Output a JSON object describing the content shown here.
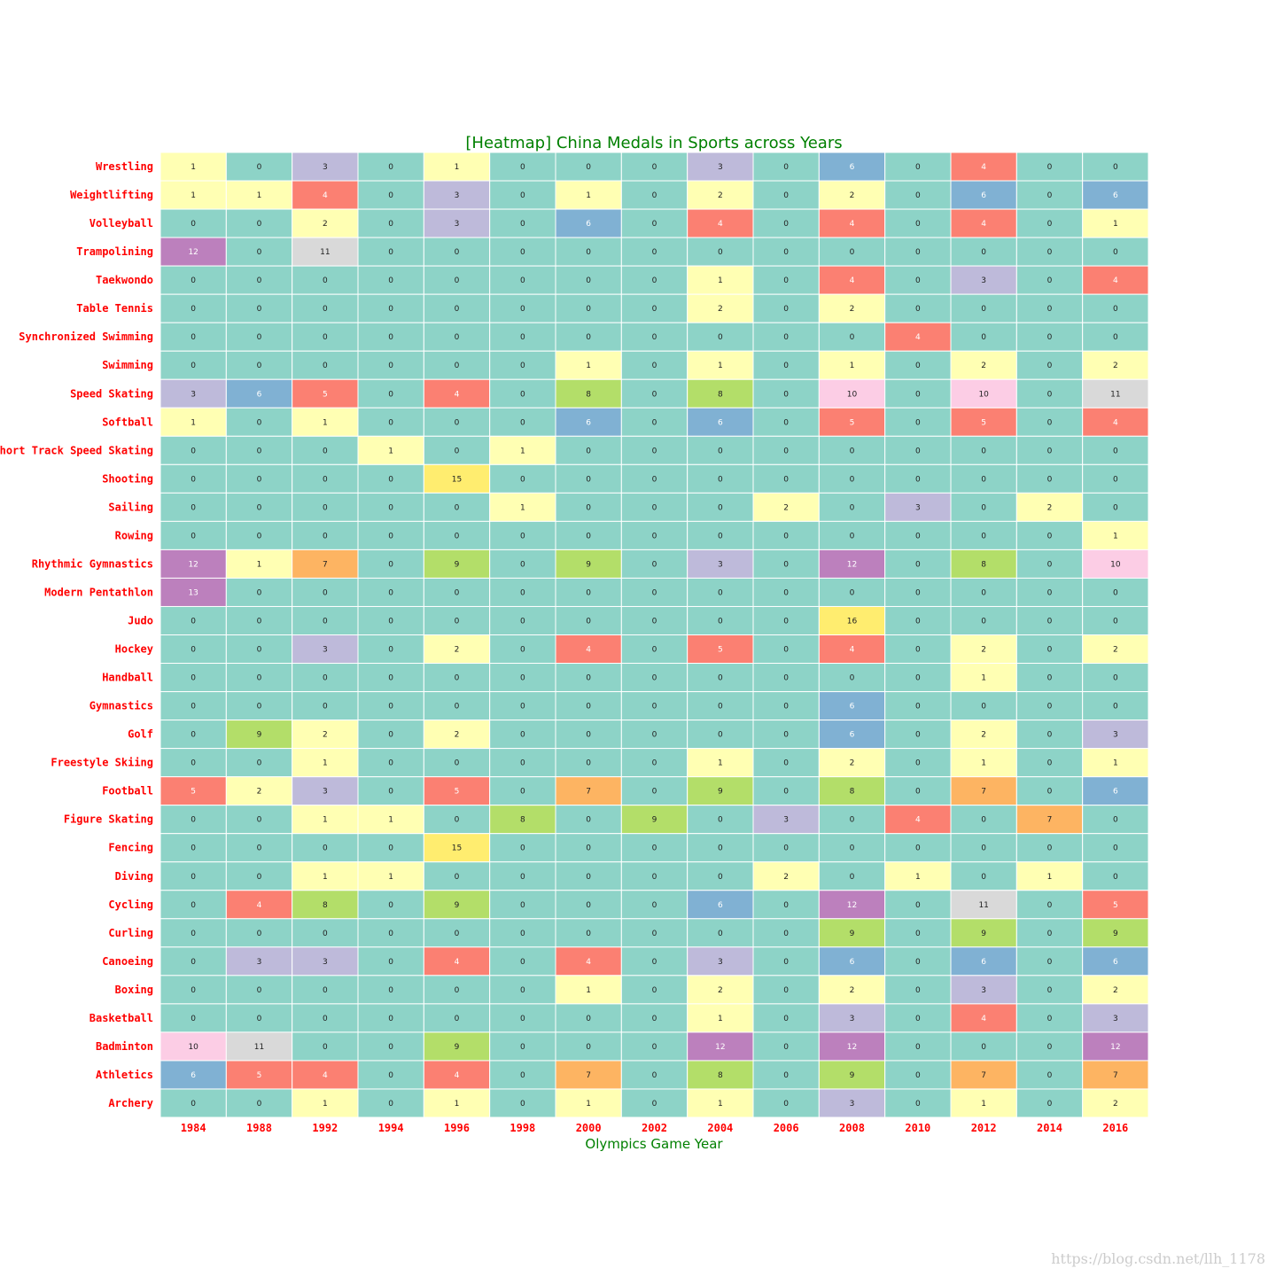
{
  "colors": {
    "title": "#008000",
    "tick_labels": "#ff0000",
    "cell_border": "#ffffff",
    "dark_text": "#222222",
    "light_text": "#ffffff",
    "watermark": "#cccccc",
    "palette": [
      "#8dd3c7",
      "#ffffb3",
      "#ffffb3",
      "#bebada",
      "#fb8072",
      "#fb8072",
      "#80b1d3",
      "#fdb462",
      "#b3de69",
      "#b3de69",
      "#fccde5",
      "#d9d9d9",
      "#bc80bd",
      "#bc80bd",
      "#ccebc5",
      "#ffed6f",
      "#ffed6f"
    ],
    "light_text_values": [
      4,
      5,
      6,
      12,
      13
    ]
  },
  "watermark": "https://blog.csdn.net/llh_1178",
  "chart_data": {
    "type": "heatmap",
    "title": "[Heatmap] China Medals in Sports across Years",
    "xlabel": "Olympics Game Year",
    "ylabel": "",
    "colormap": "Set3 (qualitative)",
    "columns": [
      "1984",
      "1988",
      "1992",
      "1994",
      "1996",
      "1998",
      "2000",
      "2002",
      "2004",
      "2006",
      "2008",
      "2010",
      "2012",
      "2014",
      "2016"
    ],
    "rows": [
      "Wrestling",
      "Weightlifting",
      "Volleyball",
      "Trampolining",
      "Taekwondo",
      "Table Tennis",
      "Synchronized Swimming",
      "Swimming",
      "Speed Skating",
      "Softball",
      "Short Track Speed Skating",
      "Shooting",
      "Sailing",
      "Rowing",
      "Rhythmic Gymnastics",
      "Modern Pentathlon",
      "Judo",
      "Hockey",
      "Handball",
      "Gymnastics",
      "Golf",
      "Freestyle Skiing",
      "Football",
      "Figure Skating",
      "Fencing",
      "Diving",
      "Cycling",
      "Curling",
      "Canoeing",
      "Boxing",
      "Basketball",
      "Badminton",
      "Athletics",
      "Archery"
    ],
    "values": [
      [
        1,
        0,
        3,
        0,
        1,
        0,
        0,
        0,
        3,
        0,
        6,
        0,
        4,
        0,
        0
      ],
      [
        1,
        1,
        4,
        0,
        3,
        0,
        1,
        0,
        2,
        0,
        2,
        0,
        6,
        0,
        6
      ],
      [
        0,
        0,
        2,
        0,
        3,
        0,
        6,
        0,
        4,
        0,
        4,
        0,
        4,
        0,
        1
      ],
      [
        12,
        0,
        11,
        0,
        0,
        0,
        0,
        0,
        0,
        0,
        0,
        0,
        0,
        0,
        0
      ],
      [
        0,
        0,
        0,
        0,
        0,
        0,
        0,
        0,
        1,
        0,
        4,
        0,
        3,
        0,
        4
      ],
      [
        0,
        0,
        0,
        0,
        0,
        0,
        0,
        0,
        2,
        0,
        2,
        0,
        0,
        0,
        0
      ],
      [
        0,
        0,
        0,
        0,
        0,
        0,
        0,
        0,
        0,
        0,
        0,
        4,
        0,
        0,
        0
      ],
      [
        0,
        0,
        0,
        0,
        0,
        0,
        1,
        0,
        1,
        0,
        1,
        0,
        2,
        0,
        2
      ],
      [
        3,
        6,
        5,
        0,
        4,
        0,
        8,
        0,
        8,
        0,
        10,
        0,
        10,
        0,
        11
      ],
      [
        1,
        0,
        1,
        0,
        0,
        0,
        6,
        0,
        6,
        0,
        5,
        0,
        5,
        0,
        4
      ],
      [
        0,
        0,
        0,
        1,
        0,
        1,
        0,
        0,
        0,
        0,
        0,
        0,
        0,
        0,
        0
      ],
      [
        0,
        0,
        0,
        0,
        15,
        0,
        0,
        0,
        0,
        0,
        0,
        0,
        0,
        0,
        0
      ],
      [
        0,
        0,
        0,
        0,
        0,
        1,
        0,
        0,
        0,
        2,
        0,
        3,
        0,
        2,
        0
      ],
      [
        0,
        0,
        0,
        0,
        0,
        0,
        0,
        0,
        0,
        0,
        0,
        0,
        0,
        0,
        1
      ],
      [
        12,
        1,
        7,
        0,
        9,
        0,
        9,
        0,
        3,
        0,
        12,
        0,
        8,
        0,
        10
      ],
      [
        13,
        0,
        0,
        0,
        0,
        0,
        0,
        0,
        0,
        0,
        0,
        0,
        0,
        0,
        0
      ],
      [
        0,
        0,
        0,
        0,
        0,
        0,
        0,
        0,
        0,
        0,
        16,
        0,
        0,
        0,
        0
      ],
      [
        0,
        0,
        3,
        0,
        2,
        0,
        4,
        0,
        5,
        0,
        4,
        0,
        2,
        0,
        2
      ],
      [
        0,
        0,
        0,
        0,
        0,
        0,
        0,
        0,
        0,
        0,
        0,
        0,
        1,
        0,
        0
      ],
      [
        0,
        0,
        0,
        0,
        0,
        0,
        0,
        0,
        0,
        0,
        6,
        0,
        0,
        0,
        0
      ],
      [
        0,
        9,
        2,
        0,
        2,
        0,
        0,
        0,
        0,
        0,
        6,
        0,
        2,
        0,
        3
      ],
      [
        0,
        0,
        1,
        0,
        0,
        0,
        0,
        0,
        1,
        0,
        2,
        0,
        1,
        0,
        1
      ],
      [
        5,
        2,
        3,
        0,
        5,
        0,
        7,
        0,
        9,
        0,
        8,
        0,
        7,
        0,
        6
      ],
      [
        0,
        0,
        1,
        1,
        0,
        8,
        0,
        9,
        0,
        3,
        0,
        4,
        0,
        7,
        0
      ],
      [
        0,
        0,
        0,
        0,
        15,
        0,
        0,
        0,
        0,
        0,
        0,
        0,
        0,
        0,
        0
      ],
      [
        0,
        0,
        1,
        1,
        0,
        0,
        0,
        0,
        0,
        2,
        0,
        1,
        0,
        1,
        0
      ],
      [
        0,
        4,
        8,
        0,
        9,
        0,
        0,
        0,
        6,
        0,
        12,
        0,
        11,
        0,
        5
      ],
      [
        0,
        0,
        0,
        0,
        0,
        0,
        0,
        0,
        0,
        0,
        9,
        0,
        9,
        0,
        9
      ],
      [
        0,
        3,
        3,
        0,
        4,
        0,
        4,
        0,
        3,
        0,
        6,
        0,
        6,
        0,
        6
      ],
      [
        0,
        0,
        0,
        0,
        0,
        0,
        1,
        0,
        2,
        0,
        2,
        0,
        3,
        0,
        2
      ],
      [
        0,
        0,
        0,
        0,
        0,
        0,
        0,
        0,
        1,
        0,
        3,
        0,
        4,
        0,
        3
      ],
      [
        10,
        11,
        0,
        0,
        9,
        0,
        0,
        0,
        12,
        0,
        12,
        0,
        0,
        0,
        12
      ],
      [
        6,
        5,
        4,
        0,
        4,
        0,
        7,
        0,
        8,
        0,
        9,
        0,
        7,
        0,
        7
      ],
      [
        0,
        0,
        1,
        0,
        1,
        0,
        1,
        0,
        1,
        0,
        3,
        0,
        1,
        0,
        2
      ]
    ],
    "vmin": 0,
    "vmax": 16,
    "annotated": true,
    "legend": "none",
    "grid": false
  }
}
